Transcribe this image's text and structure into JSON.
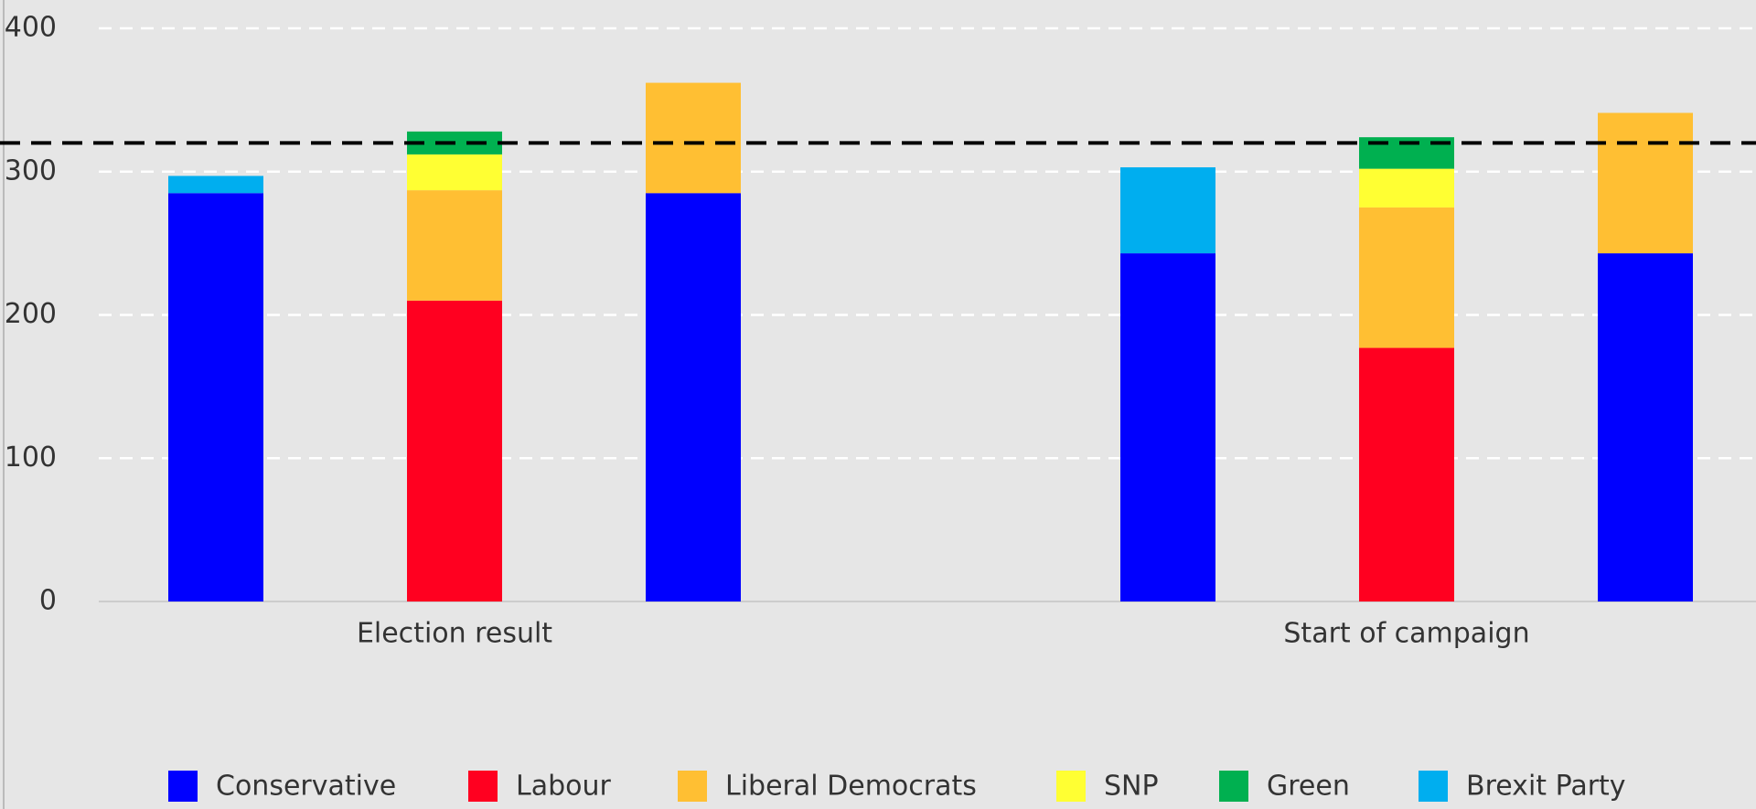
{
  "chart_data": {
    "type": "grouped_stacked_bar",
    "categories": [
      "Election result",
      "Start of campaign"
    ],
    "series": [
      {
        "name": "Conservative",
        "color": "#0000ff",
        "values": [
          [
            285,
            null,
            285
          ],
          [
            243,
            null,
            243
          ]
        ]
      },
      {
        "name": "Labour",
        "color": "#ff0020",
        "values": [
          [
            null,
            210,
            null
          ],
          [
            null,
            177,
            null
          ]
        ]
      },
      {
        "name": "Liberal Democrats",
        "color": "#ffbf33",
        "values": [
          [
            null,
            77,
            77
          ],
          [
            null,
            98,
            98
          ]
        ]
      },
      {
        "name": "SNP",
        "color": "#ffff33",
        "values": [
          [
            null,
            25,
            null
          ],
          [
            null,
            27,
            null
          ]
        ]
      },
      {
        "name": "Green",
        "color": "#00b050",
        "values": [
          [
            null,
            16,
            null
          ],
          [
            null,
            22,
            null
          ]
        ]
      },
      {
        "name": "Brexit Party",
        "color": "#00aeef",
        "values": [
          [
            12,
            null,
            null
          ],
          [
            60,
            null,
            null
          ]
        ]
      }
    ],
    "ylim": [
      0,
      400
    ],
    "yticks": [
      0,
      100,
      200,
      300,
      400
    ],
    "grid": true,
    "reference_line": {
      "value": 320,
      "color": "#000000",
      "style": "dashed"
    },
    "legend": "bottom"
  }
}
